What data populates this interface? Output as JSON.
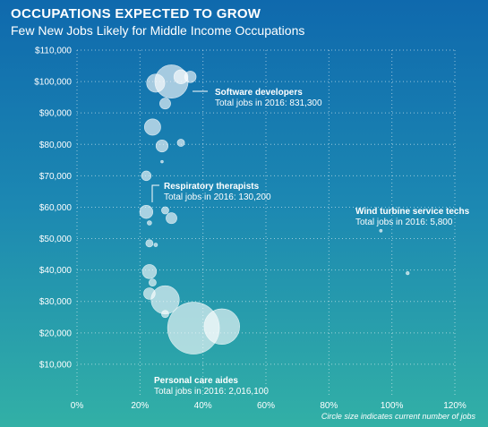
{
  "header": {
    "title": "OCCUPATIONS EXPECTED TO GROW",
    "subtitle": "Few New Jobs Likely for Middle Income Occupations",
    "note": "Circle size indicates current number of jobs"
  },
  "colors": {
    "bg_top": "#0f69ad",
    "bg_bottom": "#32b0a6",
    "bubble": "#ffffff",
    "text": "#ffffff"
  },
  "chart_data": {
    "type": "scatter",
    "title": "OCCUPATIONS EXPECTED TO GROW",
    "subtitle": "Few New Jobs Likely for Middle Income Occupations",
    "xlabel": "",
    "ylabel": "",
    "xlim": [
      0,
      120
    ],
    "ylim": [
      0,
      110000
    ],
    "x_ticks": [
      "0%",
      "20%",
      "40%",
      "60%",
      "80%",
      "100%",
      "120%"
    ],
    "x_tick_values": [
      0,
      20,
      40,
      60,
      80,
      100,
      120
    ],
    "y_ticks": [
      "$10,000",
      "$20,000",
      "$30,000",
      "$40,000",
      "$50,000",
      "$60,000",
      "$70,000",
      "$80,000",
      "$90,000",
      "$100,000",
      "$110,000"
    ],
    "y_tick_values": [
      10000,
      20000,
      30000,
      40000,
      50000,
      60000,
      70000,
      80000,
      90000,
      100000,
      110000
    ],
    "grid": "dotted",
    "size_note": "Circle size indicates current number of jobs",
    "points": [
      {
        "x": 37,
        "y": 21500,
        "jobs": 2016100
      },
      {
        "x": 46,
        "y": 22000,
        "jobs": 950000
      },
      {
        "x": 28,
        "y": 30500,
        "jobs": 600000
      },
      {
        "x": 23,
        "y": 32500,
        "jobs": 100000
      },
      {
        "x": 28,
        "y": 26000,
        "jobs": 40000
      },
      {
        "x": 23,
        "y": 39500,
        "jobs": 150000
      },
      {
        "x": 24,
        "y": 36000,
        "jobs": 40000
      },
      {
        "x": 23,
        "y": 48500,
        "jobs": 40000
      },
      {
        "x": 25,
        "y": 48000,
        "jobs": 10000
      },
      {
        "x": 22,
        "y": 58500,
        "jobs": 130200
      },
      {
        "x": 23,
        "y": 55000,
        "jobs": 15000
      },
      {
        "x": 28,
        "y": 59000,
        "jobs": 40000
      },
      {
        "x": 30,
        "y": 56500,
        "jobs": 90000
      },
      {
        "x": 22,
        "y": 70000,
        "jobs": 70000
      },
      {
        "x": 24,
        "y": 85500,
        "jobs": 200000
      },
      {
        "x": 27,
        "y": 79500,
        "jobs": 110000
      },
      {
        "x": 33,
        "y": 80500,
        "jobs": 40000
      },
      {
        "x": 27,
        "y": 74500,
        "jobs": 5000
      },
      {
        "x": 28,
        "y": 93000,
        "jobs": 90000
      },
      {
        "x": 25,
        "y": 99500,
        "jobs": 250000
      },
      {
        "x": 30,
        "y": 100000,
        "jobs": 831300
      },
      {
        "x": 33,
        "y": 101500,
        "jobs": 150000
      },
      {
        "x": 36,
        "y": 101500,
        "jobs": 100000
      },
      {
        "x": 96.5,
        "y": 52500,
        "jobs": 5800
      },
      {
        "x": 105,
        "y": 39000,
        "jobs": 8000
      }
    ],
    "annotations": [
      {
        "name": "Software developers",
        "detail": "Total jobs in 2016: 831,300",
        "x": 30,
        "y": 100000
      },
      {
        "name": "Respiratory therapists",
        "detail": "Total jobs in 2016: 130,200",
        "x": 22,
        "y": 58500
      },
      {
        "name": "Wind turbine service techs",
        "detail": "Total jobs in 2016: 5,800",
        "x": 96.5,
        "y": 52500
      },
      {
        "name": "Personal care aides",
        "detail": "Total jobs in 2016: 2,016,100",
        "x": 37,
        "y": 21500
      }
    ]
  }
}
